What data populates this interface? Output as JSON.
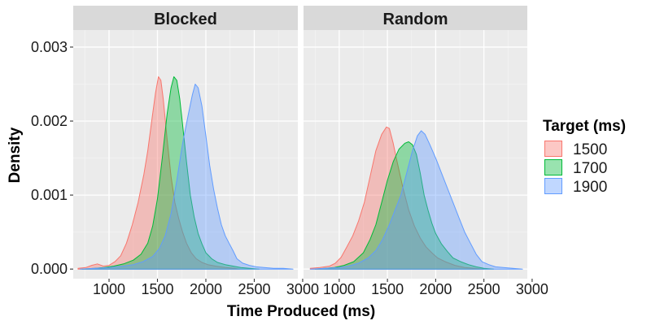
{
  "chart_data": {
    "type": "area",
    "subtype": "density",
    "xlabel": "Time Produced (ms)",
    "ylabel": "Density",
    "xlim": [
      630,
      2950
    ],
    "ylim": [
      -0.00013,
      0.00323
    ],
    "x_ticks": [
      1000,
      1500,
      2000,
      2500,
      3000
    ],
    "x_tick_labels": [
      "1000",
      "1500",
      "2000",
      "2500",
      "3000"
    ],
    "y_ticks": [
      0.0,
      0.001,
      0.002,
      0.003
    ],
    "y_tick_labels": [
      "0.000",
      "0.001",
      "0.002",
      "0.003"
    ],
    "grid": true,
    "legend": {
      "title": "Target (ms)",
      "placement": "right",
      "entries": [
        {
          "label": "1500",
          "color": "#F8766D"
        },
        {
          "label": "1700",
          "color": "#00BA38"
        },
        {
          "label": "1900",
          "color": "#619CFF"
        }
      ]
    },
    "panels": [
      {
        "label": "Blocked",
        "series": [
          {
            "name": "1500",
            "color": "#F8766D",
            "points": [
              [
                680,
                1e-05
              ],
              [
                760,
                2e-05
              ],
              [
                820,
                5e-05
              ],
              [
                880,
                7e-05
              ],
              [
                940,
                4e-05
              ],
              [
                1000,
                5e-05
              ],
              [
                1060,
                0.0001
              ],
              [
                1120,
                0.00018
              ],
              [
                1180,
                0.00035
              ],
              [
                1240,
                0.0006
              ],
              [
                1300,
                0.0009
              ],
              [
                1360,
                0.00128
              ],
              [
                1400,
                0.0016
              ],
              [
                1440,
                0.002
              ],
              [
                1480,
                0.00238
              ],
              [
                1510,
                0.0026
              ],
              [
                1535,
                0.00255
              ],
              [
                1560,
                0.0023
              ],
              [
                1600,
                0.00175
              ],
              [
                1640,
                0.00125
              ],
              [
                1680,
                0.0009
              ],
              [
                1720,
                0.00068
              ],
              [
                1760,
                0.0005
              ],
              [
                1800,
                0.00035
              ],
              [
                1850,
                0.00022
              ],
              [
                1900,
                0.00014
              ],
              [
                1960,
                9e-05
              ],
              [
                2020,
                6e-05
              ],
              [
                2100,
                4e-05
              ],
              [
                2200,
                2e-05
              ],
              [
                2300,
                1e-05
              ],
              [
                2350,
                0
              ]
            ]
          },
          {
            "name": "1700",
            "color": "#00BA38",
            "points": [
              [
                720,
                0
              ],
              [
                850,
                1e-05
              ],
              [
                950,
                2e-05
              ],
              [
                1050,
                4e-05
              ],
              [
                1150,
                7e-05
              ],
              [
                1250,
                0.00012
              ],
              [
                1330,
                0.0002
              ],
              [
                1400,
                0.00035
              ],
              [
                1450,
                0.00058
              ],
              [
                1500,
                0.00095
              ],
              [
                1550,
                0.0015
              ],
              [
                1600,
                0.0021
              ],
              [
                1640,
                0.00245
              ],
              [
                1670,
                0.0026
              ],
              [
                1700,
                0.00255
              ],
              [
                1730,
                0.0023
              ],
              [
                1760,
                0.00195
              ],
              [
                1800,
                0.00145
              ],
              [
                1840,
                0.001
              ],
              [
                1880,
                0.0007
              ],
              [
                1920,
                0.00048
              ],
              [
                1960,
                0.00034
              ],
              [
                2000,
                0.00022
              ],
              [
                2060,
                0.00014
              ],
              [
                2120,
                9e-05
              ],
              [
                2200,
                6e-05
              ],
              [
                2280,
                4e-05
              ],
              [
                2360,
                2e-05
              ],
              [
                2450,
                1e-05
              ],
              [
                2550,
                0
              ]
            ]
          },
          {
            "name": "1900",
            "color": "#619CFF",
            "points": [
              [
                700,
                0
              ],
              [
                850,
                1e-05
              ],
              [
                1000,
                2e-05
              ],
              [
                1150,
                4e-05
              ],
              [
                1250,
                6e-05
              ],
              [
                1350,
                0.0001
              ],
              [
                1450,
                0.00017
              ],
              [
                1520,
                0.00028
              ],
              [
                1580,
                0.00045
              ],
              [
                1640,
                0.00075
              ],
              [
                1700,
                0.0012
              ],
              [
                1760,
                0.0017
              ],
              [
                1820,
                0.0021
              ],
              [
                1860,
                0.00235
              ],
              [
                1890,
                0.0025
              ],
              [
                1920,
                0.00245
              ],
              [
                1960,
                0.0022
              ],
              [
                2000,
                0.0018
              ],
              [
                2040,
                0.0014
              ],
              [
                2080,
                0.00108
              ],
              [
                2120,
                0.00082
              ],
              [
                2160,
                0.0006
              ],
              [
                2200,
                0.00045
              ],
              [
                2240,
                0.00035
              ],
              [
                2280,
                0.00025
              ],
              [
                2320,
                0.00014
              ],
              [
                2380,
                8e-05
              ],
              [
                2450,
                5e-05
              ],
              [
                2520,
                3e-05
              ],
              [
                2600,
                2e-05
              ],
              [
                2700,
                1e-05
              ],
              [
                2800,
                1e-05
              ],
              [
                2900,
                0
              ]
            ]
          }
        ]
      },
      {
        "label": "Random",
        "series": [
          {
            "name": "1500",
            "color": "#F8766D",
            "points": [
              [
                700,
                1e-05
              ],
              [
                800,
                2e-05
              ],
              [
                900,
                4e-05
              ],
              [
                960,
                8e-05
              ],
              [
                1020,
                0.00016
              ],
              [
                1080,
                0.0003
              ],
              [
                1140,
                0.00045
              ],
              [
                1200,
                0.00065
              ],
              [
                1260,
                0.0009
              ],
              [
                1320,
                0.00125
              ],
              [
                1380,
                0.0016
              ],
              [
                1440,
                0.00182
              ],
              [
                1490,
                0.00192
              ],
              [
                1520,
                0.0019
              ],
              [
                1560,
                0.0017
              ],
              [
                1600,
                0.00145
              ],
              [
                1660,
                0.0011
              ],
              [
                1720,
                0.0008
              ],
              [
                1780,
                0.00058
              ],
              [
                1840,
                0.00042
              ],
              [
                1900,
                0.0003
              ],
              [
                1960,
                0.00022
              ],
              [
                2020,
                0.00015
              ],
              [
                2100,
                0.0001
              ],
              [
                2200,
                5e-05
              ],
              [
                2300,
                2e-05
              ],
              [
                2400,
                1e-05
              ],
              [
                2500,
                0
              ]
            ]
          },
          {
            "name": "1700",
            "color": "#00BA38",
            "points": [
              [
                750,
                0
              ],
              [
                850,
                1e-05
              ],
              [
                950,
                2e-05
              ],
              [
                1050,
                5e-05
              ],
              [
                1150,
                0.0001
              ],
              [
                1250,
                0.00022
              ],
              [
                1320,
                0.0004
              ],
              [
                1380,
                0.0006
              ],
              [
                1440,
                0.0009
              ],
              [
                1500,
                0.0012
              ],
              [
                1560,
                0.00145
              ],
              [
                1620,
                0.00162
              ],
              [
                1680,
                0.0017
              ],
              [
                1720,
                0.00172
              ],
              [
                1760,
                0.00168
              ],
              [
                1800,
                0.00155
              ],
              [
                1840,
                0.0013
              ],
              [
                1880,
                0.001
              ],
              [
                1920,
                0.0008
              ],
              [
                1960,
                0.00062
              ],
              [
                2000,
                0.00048
              ],
              [
                2060,
                0.00034
              ],
              [
                2120,
                0.00024
              ],
              [
                2180,
                0.00015
              ],
              [
                2260,
                0.0001
              ],
              [
                2340,
                6e-05
              ],
              [
                2420,
                3e-05
              ],
              [
                2500,
                1e-05
              ],
              [
                2600,
                0
              ]
            ]
          },
          {
            "name": "1900",
            "color": "#619CFF",
            "points": [
              [
                700,
                0
              ],
              [
                850,
                1e-05
              ],
              [
                1000,
                2e-05
              ],
              [
                1100,
                4e-05
              ],
              [
                1200,
                8e-05
              ],
              [
                1300,
                0.00015
              ],
              [
                1380,
                0.00025
              ],
              [
                1450,
                0.0004
              ],
              [
                1520,
                0.0006
              ],
              [
                1580,
                0.0008
              ],
              [
                1640,
                0.001
              ],
              [
                1700,
                0.0013
              ],
              [
                1760,
                0.0016
              ],
              [
                1810,
                0.0018
              ],
              [
                1850,
                0.00187
              ],
              [
                1890,
                0.00182
              ],
              [
                1940,
                0.00168
              ],
              [
                2000,
                0.0015
              ],
              [
                2060,
                0.0013
              ],
              [
                2120,
                0.0011
              ],
              [
                2180,
                0.0009
              ],
              [
                2240,
                0.0007
              ],
              [
                2300,
                0.0005
              ],
              [
                2360,
                0.00035
              ],
              [
                2420,
                0.0002
              ],
              [
                2480,
                0.0001
              ],
              [
                2550,
                6e-05
              ],
              [
                2620,
                3e-05
              ],
              [
                2700,
                2e-05
              ],
              [
                2800,
                1e-05
              ],
              [
                2900,
                0
              ]
            ]
          }
        ]
      }
    ]
  }
}
